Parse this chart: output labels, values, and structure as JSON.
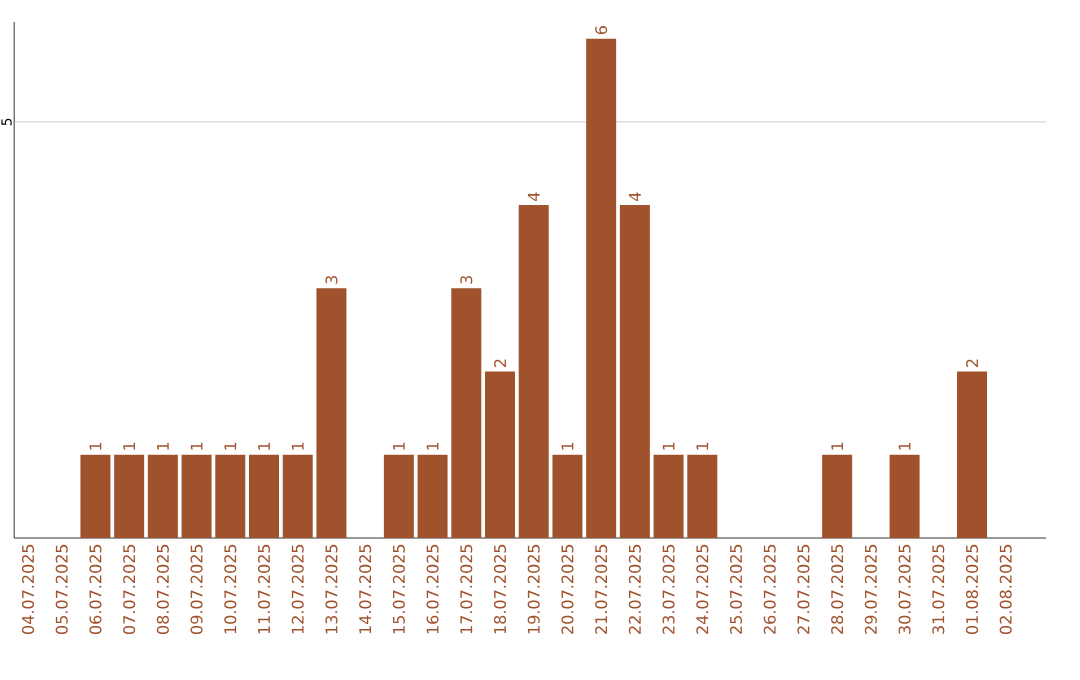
{
  "chart_data": {
    "type": "bar",
    "categories": [
      "04.07.2025",
      "05.07.2025",
      "06.07.2025",
      "07.07.2025",
      "08.07.2025",
      "09.07.2025",
      "10.07.2025",
      "11.07.2025",
      "12.07.2025",
      "13.07.2025",
      "14.07.2025",
      "15.07.2025",
      "16.07.2025",
      "17.07.2025",
      "18.07.2025",
      "19.07.2025",
      "20.07.2025",
      "21.07.2025",
      "22.07.2025",
      "23.07.2025",
      "24.07.2025",
      "25.07.2025",
      "26.07.2025",
      "27.07.2025",
      "28.07.2025",
      "29.07.2025",
      "30.07.2025",
      "31.07.2025",
      "01.08.2025",
      "02.08.2025"
    ],
    "values": [
      0,
      0,
      1,
      1,
      1,
      1,
      1,
      1,
      1,
      3,
      0,
      1,
      1,
      3,
      2,
      4,
      1,
      6,
      4,
      1,
      1,
      0,
      0,
      0,
      1,
      0,
      1,
      0,
      2,
      0
    ],
    "value_labels": [
      null,
      null,
      "1",
      "1",
      "1",
      "1",
      "1",
      "1",
      "1",
      "3",
      null,
      "1",
      "1",
      "3",
      "2",
      "4",
      "1",
      "6",
      "4",
      "1",
      "1",
      null,
      null,
      null,
      "1",
      null,
      "1",
      null,
      "2",
      null
    ],
    "color": "#a0522d",
    "ylim": [
      0,
      6.2
    ],
    "yticks": [
      5
    ],
    "grid": "y"
  }
}
